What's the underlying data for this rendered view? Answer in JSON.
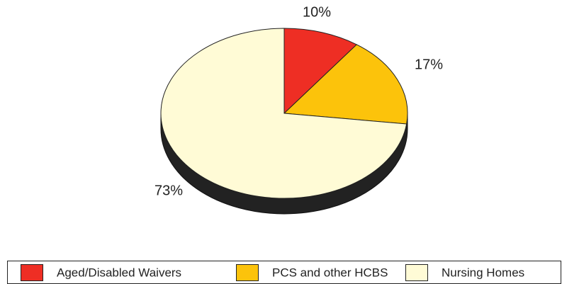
{
  "chart_data": {
    "type": "pie",
    "categories": [
      "Aged/Disabled Waivers",
      "PCS and other HCBS",
      "Nursing Homes"
    ],
    "values": [
      10,
      17,
      73
    ],
    "value_labels": [
      "10%",
      "17%",
      "73%"
    ],
    "colors": [
      "#ee2e24",
      "#fcc30b",
      "#fffbd6"
    ],
    "legend": "bottom"
  }
}
